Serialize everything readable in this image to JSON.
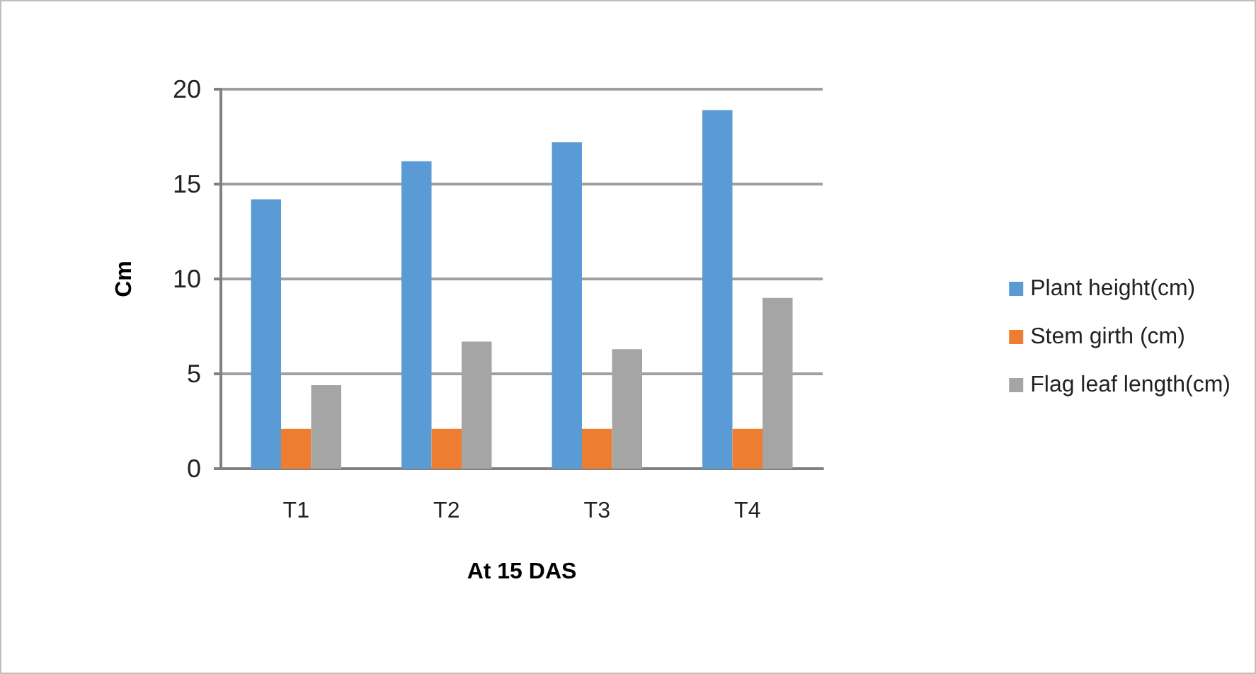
{
  "chart_data": {
    "type": "bar",
    "categories": [
      "T1",
      "T2",
      "T3",
      "T4"
    ],
    "series": [
      {
        "name": "Plant height(cm)",
        "color": "#5b9bd5",
        "values": [
          14.2,
          16.2,
          17.2,
          18.9
        ]
      },
      {
        "name": "Stem girth (cm)",
        "color": "#ed7d31",
        "values": [
          2.1,
          2.1,
          2.1,
          2.1
        ]
      },
      {
        "name": "Flag leaf length(cm)",
        "color": "#a5a5a5",
        "values": [
          4.4,
          6.7,
          6.3,
          9.0
        ]
      }
    ],
    "xlabel": "At 15 DAS",
    "ylabel": "Cm",
    "ylim": [
      0,
      20
    ],
    "yticks": [
      0,
      5,
      10,
      15,
      20
    ],
    "grid": "y",
    "legend": "right"
  }
}
